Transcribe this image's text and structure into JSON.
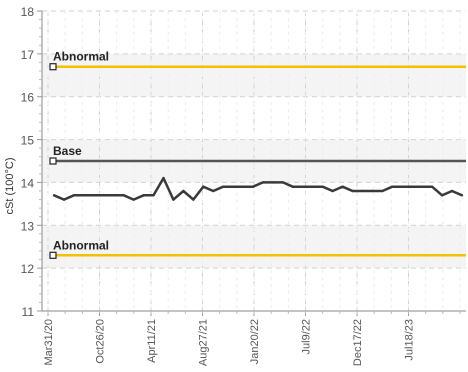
{
  "chart_data": {
    "type": "line",
    "ylabel": "cSt (100°C)",
    "ylim": [
      11,
      18
    ],
    "yticks": [
      11,
      12,
      13,
      14,
      15,
      16,
      17,
      18
    ],
    "grid": true,
    "x_tick_labels": [
      "Mar31/20",
      "Oct26/20",
      "Apr11/21",
      "Aug27/21",
      "Jan20/22",
      "Jul9/22",
      "Dec17/22",
      "Jul18/23"
    ],
    "reference_lines": [
      {
        "label": "Abnormal",
        "value": 16.7,
        "color": "#f2c200"
      },
      {
        "label": "Base",
        "value": 14.5,
        "color": "#555555"
      },
      {
        "label": "Abnormal",
        "value": 12.3,
        "color": "#f2c200"
      }
    ],
    "series": [
      {
        "color": "#3a3a3a",
        "values": [
          13.7,
          13.6,
          13.7,
          13.7,
          13.7,
          13.7,
          13.7,
          13.7,
          13.6,
          13.7,
          13.7,
          14.1,
          13.6,
          13.8,
          13.6,
          13.9,
          13.8,
          13.9,
          13.9,
          13.9,
          13.9,
          14.0,
          14.0,
          14.0,
          13.9,
          13.9,
          13.9,
          13.9,
          13.8,
          13.9,
          13.8,
          13.8,
          13.8,
          13.8,
          13.9,
          13.9,
          13.9,
          13.9,
          13.9,
          13.7,
          13.8,
          13.7
        ]
      }
    ]
  }
}
